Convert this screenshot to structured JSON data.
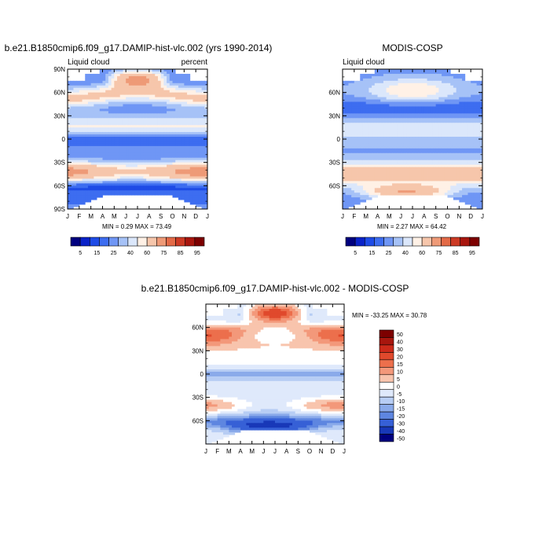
{
  "chart_data": [
    {
      "type": "heatmap",
      "title": "b.e21.B1850cmip6.f09_g17.DAMIP-hist-vlc.002 (yrs 1990-2014)",
      "left_label": "Liquid cloud",
      "right_label": "percent",
      "stats": "MIN =   0.29 MAX =  73.49",
      "x_tick_labels": [
        "J",
        "F",
        "M",
        "A",
        "M",
        "J",
        "J",
        "A",
        "S",
        "O",
        "N",
        "D",
        "J"
      ],
      "y_tick_labels": [
        "90N",
        "60N",
        "30N",
        "0",
        "30S",
        "60S",
        "90S"
      ],
      "y_tick_values": [
        90,
        60,
        30,
        0,
        -30,
        -60,
        -90
      ],
      "ylim": [
        -90,
        90
      ],
      "colorbar_labels": [
        "5",
        "15",
        "25",
        "40",
        "60",
        "75",
        "85",
        "95"
      ],
      "colorbar_colors": [
        "#00007f",
        "#0a22c8",
        "#1e4be6",
        "#3d6df0",
        "#6f96f5",
        "#a6c2f7",
        "#dbe7fb",
        "#fff1e6",
        "#f6c6ab",
        "#ee9a77",
        "#e36a47",
        "#cc3a24",
        "#a8160e",
        "#7d0000"
      ],
      "color_levels": [
        5,
        10,
        15,
        20,
        25,
        30,
        35,
        40,
        50,
        60,
        70,
        75,
        85,
        95
      ],
      "blank_regions": [
        "north-polar-winter",
        "south-polar-winter"
      ]
    },
    {
      "type": "heatmap",
      "title": "MODIS-COSP",
      "left_label": "Liquid cloud",
      "stats": "MIN =   2.27 MAX =  64.42",
      "x_tick_labels": [
        "J",
        "F",
        "M",
        "A",
        "M",
        "J",
        "J",
        "A",
        "S",
        "O",
        "N",
        "D",
        "J"
      ],
      "y_tick_labels": [
        "60N",
        "30N",
        "0",
        "30S",
        "60S"
      ],
      "y_tick_values": [
        60,
        30,
        0,
        -30,
        -60
      ],
      "ylim": [
        -90,
        90
      ],
      "colorbar_labels": [
        "5",
        "15",
        "25",
        "40",
        "60",
        "75",
        "85",
        "95"
      ],
      "colorbar_colors": [
        "#00007f",
        "#0a22c8",
        "#1e4be6",
        "#3d6df0",
        "#6f96f5",
        "#a6c2f7",
        "#dbe7fb",
        "#fff1e6",
        "#f6c6ab",
        "#ee9a77",
        "#e36a47",
        "#cc3a24",
        "#a8160e",
        "#7d0000"
      ],
      "color_levels": [
        5,
        10,
        15,
        20,
        25,
        30,
        35,
        40,
        50,
        60,
        70,
        75,
        85,
        95
      ],
      "blank_regions": [
        "north-polar-winter",
        "south-polar-winter"
      ]
    },
    {
      "type": "heatmap",
      "title": "b.e21.B1850cmip6.f09_g17.DAMIP-hist-vlc.002 - MODIS-COSP",
      "stats": "MIN = -33.25 MAX =  30.78",
      "x_tick_labels": [
        "J",
        "F",
        "M",
        "A",
        "M",
        "J",
        "J",
        "A",
        "S",
        "O",
        "N",
        "D",
        "J"
      ],
      "y_tick_labels": [
        "60N",
        "30N",
        "0",
        "30S",
        "60S"
      ],
      "y_tick_values": [
        60,
        30,
        0,
        -30,
        -60
      ],
      "ylim": [
        -90,
        90
      ],
      "colorbar_labels": [
        "50",
        "40",
        "30",
        "20",
        "15",
        "10",
        "5",
        "0",
        "-5",
        "-10",
        "-15",
        "-20",
        "-30",
        "-40",
        "-50"
      ],
      "colorbar_colors": [
        "#7d0000",
        "#a8160e",
        "#cc2a1a",
        "#e0492c",
        "#ec6f4c",
        "#f3987a",
        "#f8c4ad",
        "#ffffff",
        "#dfe9fb",
        "#b7cdf4",
        "#8aaaea",
        "#5e86e0",
        "#3660d6",
        "#1838b8",
        "#00007f"
      ],
      "color_levels": [
        50,
        40,
        30,
        20,
        15,
        10,
        5,
        0,
        -5,
        -10,
        -15,
        -20,
        -30,
        -40,
        -50
      ],
      "blank_regions": [
        "north-polar-winter",
        "south-polar-winter"
      ]
    }
  ]
}
